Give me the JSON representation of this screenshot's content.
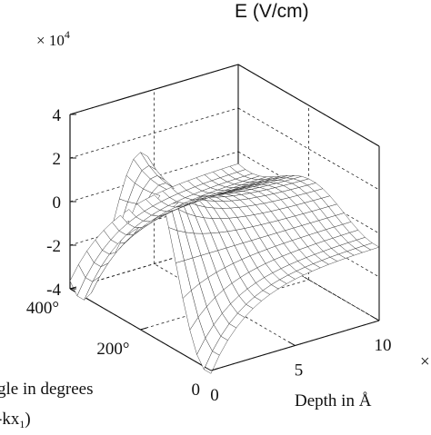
{
  "chart_data": {
    "type": "surface",
    "zlabel": "E (V/cm)",
    "z_multiplier": "× 10",
    "z_multiplier_exp": "4",
    "xlabel": "Depth in Å",
    "ylabel_line1": "gle in degrees",
    "ylabel_line2": "-kx",
    "ylabel_line2_sub": "1",
    "ylabel_line2_end": ")",
    "x_ticks": [
      {
        "value": 0,
        "label": "0"
      },
      {
        "value": 5,
        "label": "5"
      },
      {
        "value": 10,
        "label": "10"
      }
    ],
    "y_ticks": [
      {
        "value": 0,
        "label": "0"
      },
      {
        "value": 200,
        "label": "200°"
      },
      {
        "value": 400,
        "label": "400°"
      }
    ],
    "z_ticks": [
      {
        "value": -4,
        "label": "-4"
      },
      {
        "value": -2,
        "label": "-2"
      },
      {
        "value": 0,
        "label": "0"
      },
      {
        "value": 2,
        "label": "2"
      },
      {
        "value": 4,
        "label": "4"
      }
    ],
    "xlim": [
      0,
      10
    ],
    "ylim": [
      0,
      400
    ],
    "zlim": [
      -4,
      4
    ],
    "grid": true,
    "surface_estimate": {
      "x": [
        0,
        0.5,
        1,
        1.5,
        2,
        2.5,
        3,
        3.5,
        4,
        4.5,
        5,
        5.5,
        6,
        6.5,
        7,
        7.5,
        8,
        8.5,
        9,
        9.5,
        10
      ],
      "y": [
        0,
        20,
        40,
        60,
        80,
        100,
        120,
        140,
        160,
        180,
        200,
        220,
        240,
        260,
        280,
        300,
        320,
        340,
        360,
        380,
        400
      ],
      "amplitude_at_x0": 4.2,
      "amplitude_at_x10": 0.6,
      "phase_deg": 260
    }
  }
}
